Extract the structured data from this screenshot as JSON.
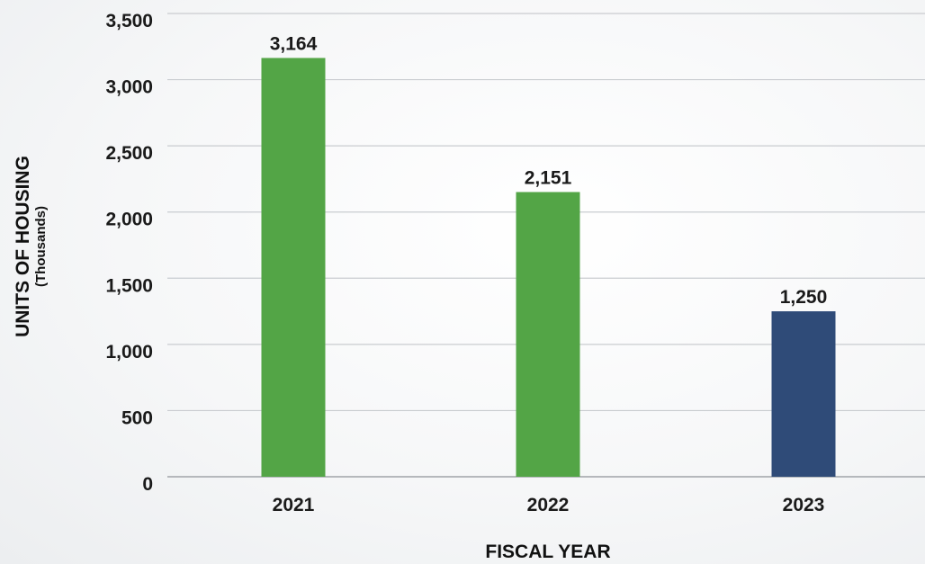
{
  "chart_data": {
    "type": "bar",
    "categories": [
      "2021",
      "2022",
      "2023"
    ],
    "values": [
      3164,
      2151,
      1250
    ],
    "value_labels": [
      "3,164",
      "2,151",
      "1,250"
    ],
    "bar_colors": [
      "#53a546",
      "#53a546",
      "#2f4b78"
    ],
    "xlabel": "FISCAL YEAR",
    "ylabel": "UNITS OF HOUSING",
    "ylabel_sub": "(Thousands)",
    "ylim": [
      0,
      3500
    ],
    "yticks": [
      0,
      500,
      1000,
      1500,
      2000,
      2500,
      3000,
      3500
    ],
    "ytick_labels": [
      "0",
      "500",
      "1,000",
      "1,500",
      "2,000",
      "2,500",
      "3,000",
      "3,500"
    ],
    "grid": true,
    "legend": "none"
  }
}
